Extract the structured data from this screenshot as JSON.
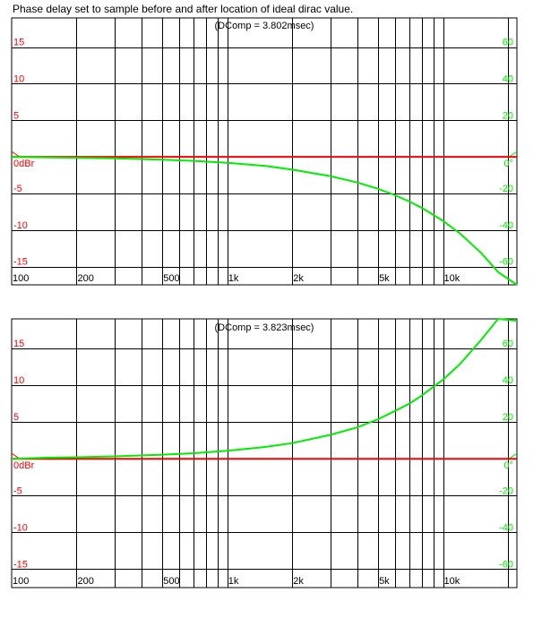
{
  "caption": "Phase delay set to sample before and after location of ideal dirac value.",
  "colors": {
    "magnitude": "#ff0000",
    "phase": "#00ee00",
    "grid": "#000000",
    "background": "#ffffff"
  },
  "chart_data": [
    {
      "type": "line",
      "annotation": "(DComp = 3.802msec)",
      "x_scale": "log",
      "xlim": [
        100,
        22000
      ],
      "y_left_lim": [
        -17.5,
        19
      ],
      "y_right_lim": [
        -70,
        76
      ],
      "x_tick_labels": [
        {
          "x": 100,
          "label": "100"
        },
        {
          "x": 200,
          "label": "200"
        },
        {
          "x": 500,
          "label": "500"
        },
        {
          "x": 1000,
          "label": "1k"
        },
        {
          "x": 2000,
          "label": "2k"
        },
        {
          "x": 5000,
          "label": "5k"
        },
        {
          "x": 10000,
          "label": "10k"
        }
      ],
      "x_grid": [
        200,
        300,
        400,
        500,
        600,
        700,
        800,
        900,
        1000,
        2000,
        3000,
        4000,
        5000,
        6000,
        7000,
        8000,
        9000,
        10000,
        20000
      ],
      "y_left_ticks": [
        {
          "y": 15,
          "label": "15"
        },
        {
          "y": 10,
          "label": "10"
        },
        {
          "y": 5,
          "label": "5"
        },
        {
          "y": 0,
          "label": "0dBr"
        },
        {
          "y": -5,
          "label": "-5"
        },
        {
          "y": -10,
          "label": "-10"
        },
        {
          "y": -15,
          "label": "-15"
        }
      ],
      "y_right_ticks": [
        {
          "y": 60,
          "label": "60"
        },
        {
          "y": 40,
          "label": "40"
        },
        {
          "y": 20,
          "label": "20"
        },
        {
          "y": 0,
          "label": "0°"
        },
        {
          "y": -20,
          "label": "-20"
        },
        {
          "y": -40,
          "label": "-40"
        },
        {
          "y": -60,
          "label": "-60"
        }
      ],
      "series": [
        {
          "axis": "left",
          "x": [
            100,
            22000
          ],
          "y": [
            0,
            0
          ]
        },
        {
          "axis": "right",
          "x": [
            100,
            150,
            200,
            300,
            500,
            700,
            1000,
            1500,
            2000,
            3000,
            4000,
            5000,
            6000,
            7000,
            8000,
            10000,
            12000,
            15000,
            18000,
            22000
          ],
          "y": [
            0,
            -0.3,
            -0.5,
            -0.8,
            -1.5,
            -2.2,
            -3.2,
            -5,
            -7,
            -10.5,
            -14,
            -17.5,
            -21,
            -24.5,
            -28,
            -35,
            -42,
            -52.5,
            -63,
            -77
          ]
        }
      ]
    },
    {
      "type": "line",
      "annotation": "(DComp = 3.823msec)",
      "x_scale": "log",
      "xlim": [
        100,
        22000
      ],
      "y_left_lim": [
        -17.5,
        19
      ],
      "y_right_lim": [
        -70,
        76
      ],
      "x_tick_labels": [
        {
          "x": 100,
          "label": "100"
        },
        {
          "x": 200,
          "label": "200"
        },
        {
          "x": 500,
          "label": "500"
        },
        {
          "x": 1000,
          "label": "1k"
        },
        {
          "x": 2000,
          "label": "2k"
        },
        {
          "x": 5000,
          "label": "5k"
        },
        {
          "x": 10000,
          "label": "10k"
        }
      ],
      "x_grid": [
        200,
        300,
        400,
        500,
        600,
        700,
        800,
        900,
        1000,
        2000,
        3000,
        4000,
        5000,
        6000,
        7000,
        8000,
        9000,
        10000,
        20000
      ],
      "y_left_ticks": [
        {
          "y": 15,
          "label": "15"
        },
        {
          "y": 10,
          "label": "10"
        },
        {
          "y": 5,
          "label": "5"
        },
        {
          "y": 0,
          "label": "0dBr"
        },
        {
          "y": -5,
          "label": "-5"
        },
        {
          "y": -10,
          "label": "-10"
        },
        {
          "y": -15,
          "label": "-15"
        }
      ],
      "y_right_ticks": [
        {
          "y": 60,
          "label": "60"
        },
        {
          "y": 40,
          "label": "40"
        },
        {
          "y": 20,
          "label": "20"
        },
        {
          "y": 0,
          "label": "0°"
        },
        {
          "y": -20,
          "label": "-20"
        },
        {
          "y": -40,
          "label": "-40"
        },
        {
          "y": -60,
          "label": "-60"
        }
      ],
      "series": [
        {
          "axis": "left",
          "x": [
            100,
            22000
          ],
          "y": [
            0,
            0
          ]
        },
        {
          "axis": "right",
          "x": [
            100,
            150,
            200,
            300,
            500,
            700,
            1000,
            1500,
            2000,
            3000,
            4000,
            5000,
            6000,
            7000,
            8000,
            10000,
            12000,
            15000,
            18000,
            22000
          ],
          "y": [
            0,
            0.6,
            0.8,
            1.3,
            2.2,
            3,
            4.3,
            6.4,
            8.5,
            13,
            17,
            21.5,
            26,
            30,
            34.5,
            43,
            51.5,
            64.5,
            77,
            75
          ]
        }
      ]
    }
  ]
}
